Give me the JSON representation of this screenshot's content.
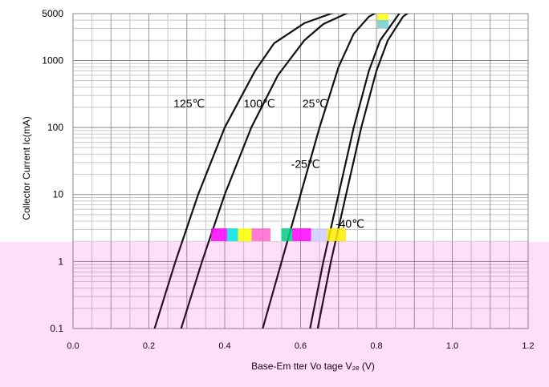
{
  "chart_data": {
    "type": "line",
    "title": "",
    "xlabel": "Base-Em tter Vo tage  V₂ₑ  (V)",
    "ylabel": "Collector Current  Ic(mA)",
    "xscale": "linear",
    "yscale": "log",
    "xlim": [
      0.0,
      1.2
    ],
    "ylim": [
      0.1,
      5000
    ],
    "x_ticks": [
      "0.0",
      "0.2",
      "0.4",
      "0.6",
      "0.8",
      "1.0",
      "1.2"
    ],
    "x_tick_values": [
      0.0,
      0.2,
      0.4,
      0.6,
      0.8,
      1.0,
      1.2
    ],
    "y_ticks": [
      "0.1",
      "1",
      "10",
      "100",
      "1000",
      "5000"
    ],
    "y_tick_values": [
      0.1,
      1,
      10,
      100,
      1000,
      5000
    ],
    "grid": true,
    "series": [
      {
        "name": "125℃",
        "label_at": [
          0.265,
          200
        ],
        "x": [
          0.215,
          0.27,
          0.33,
          0.4,
          0.48,
          0.53,
          0.61,
          0.68,
          0.73
        ],
        "y": [
          0.1,
          1,
          10,
          100,
          700,
          1800,
          3600,
          5000,
          6000
        ]
      },
      {
        "name": "100℃",
        "label_at": [
          0.45,
          200
        ],
        "x": [
          0.285,
          0.34,
          0.4,
          0.47,
          0.54,
          0.61,
          0.66,
          0.72,
          0.77
        ],
        "y": [
          0.1,
          1,
          10,
          100,
          600,
          2000,
          3500,
          5000,
          6000
        ]
      },
      {
        "name": "25℃",
        "label_at": [
          0.605,
          200
        ],
        "x": [
          0.5,
          0.55,
          0.6,
          0.65,
          0.7,
          0.74,
          0.78,
          0.82
        ],
        "y": [
          0.1,
          1,
          10,
          100,
          800,
          2500,
          4500,
          6000
        ]
      },
      {
        "name": "-25℃",
        "label_at": [
          0.575,
          25
        ],
        "x": [
          0.625,
          0.66,
          0.7,
          0.74,
          0.78,
          0.81,
          0.86,
          0.87
        ],
        "y": [
          0.1,
          1,
          10,
          100,
          700,
          2000,
          5000,
          6000
        ]
      },
      {
        "name": "-40℃",
        "label_at": [
          0.692,
          3.2
        ],
        "x": [
          0.645,
          0.68,
          0.72,
          0.76,
          0.8,
          0.83,
          0.87,
          0.9
        ],
        "y": [
          0.1,
          1,
          10,
          100,
          700,
          2000,
          4500,
          6000
        ]
      }
    ]
  }
}
